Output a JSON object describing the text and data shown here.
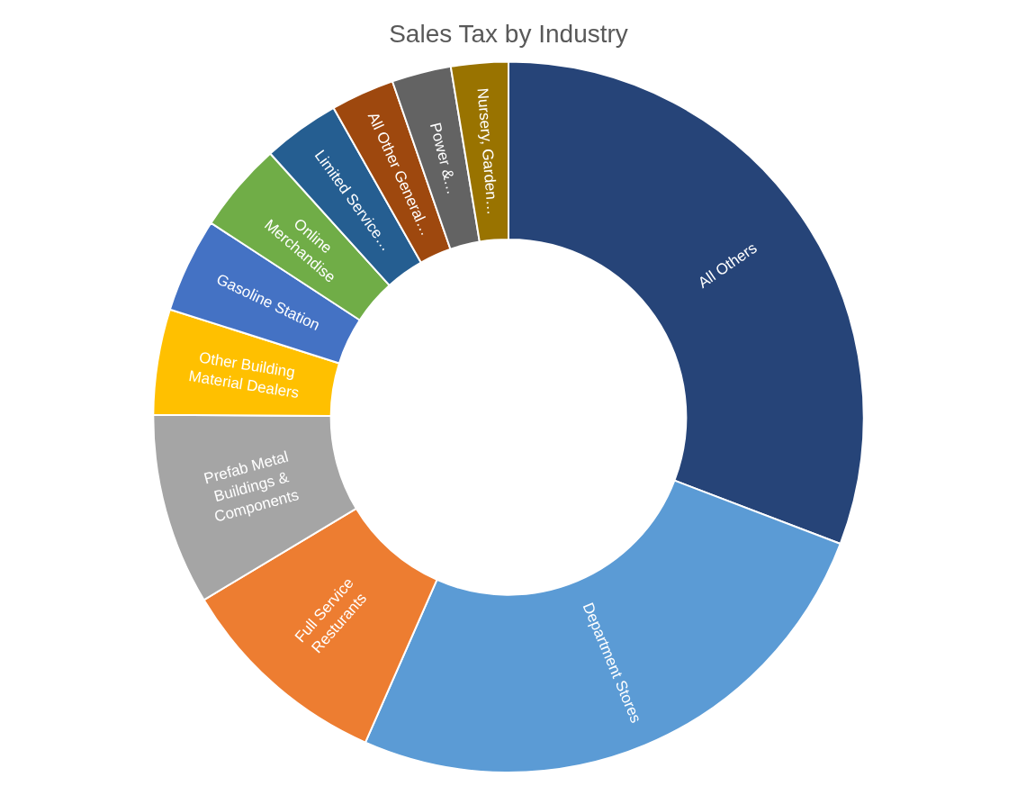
{
  "chart_data": {
    "type": "donut",
    "title": "Sales Tax by Industry",
    "categories": [
      "All Others",
      "Department Stores",
      "Full Service Resturants",
      "Prefab Metal Buildings & Components",
      "Other Building Material Dealers",
      "Gasoline Station",
      "Online Merchandise",
      "Limited Service…",
      "All Other General…",
      "Power &…",
      "Nursery, Garden…"
    ],
    "values": [
      30.8,
      25.8,
      9.8,
      8.7,
      4.8,
      4.3,
      4.1,
      3.5,
      2.9,
      2.7,
      2.6
    ],
    "colors": [
      "#264478",
      "#5b9bd5",
      "#ed7d31",
      "#a5a5a5",
      "#ffc000",
      "#4472c4",
      "#70ad47",
      "#255e91",
      "#9e480e",
      "#636363",
      "#997300"
    ],
    "data_labels": false,
    "legend": false
  }
}
